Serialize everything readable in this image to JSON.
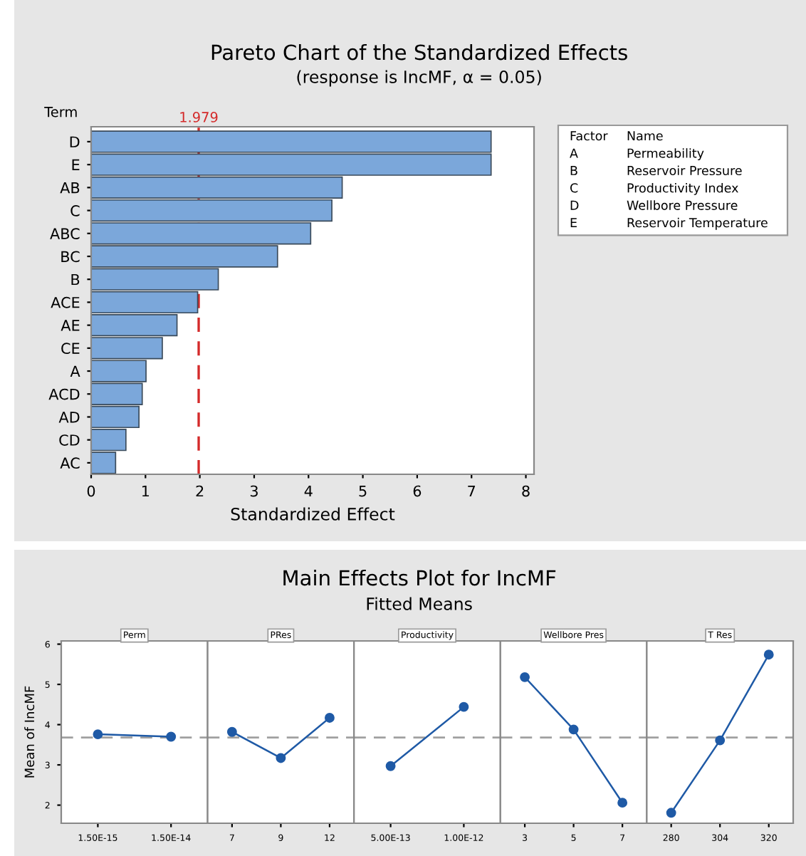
{
  "chart_data": [
    {
      "type": "bar",
      "orientation": "horizontal",
      "title": "Pareto Chart of the Standardized Effects",
      "subtitle": "(response is IncMF, α = 0.05)",
      "xlabel": "Standardized Effect",
      "ylabel": "Term",
      "categories": [
        "D",
        "E",
        "AB",
        "C",
        "ABC",
        "BC",
        "B",
        "ACE",
        "AE",
        "CE",
        "A",
        "ACD",
        "AD",
        "CD",
        "AC"
      ],
      "values": [
        7.36,
        7.36,
        4.62,
        4.43,
        4.04,
        3.43,
        2.34,
        1.96,
        1.58,
        1.31,
        1.01,
        0.94,
        0.88,
        0.64,
        0.45
      ],
      "color": "#7ba7da",
      "xlim": [
        0,
        8.15
      ],
      "xticks": [
        0,
        1,
        2,
        3,
        4,
        5,
        6,
        7,
        8
      ],
      "ref_lines": [
        {
          "axis": "x",
          "value": 1.979,
          "label": "1.979",
          "color": "#d42a2a",
          "line_style": "dashed"
        }
      ],
      "annotations": [
        "Factor",
        "Name",
        "A",
        "Permeability",
        "B",
        "Reservoir Pressure",
        "C",
        "Productivity Index",
        "D",
        "Wellbore Pressure",
        "E",
        "Reservoir Temperature"
      ],
      "grid": false,
      "legend": false
    },
    {
      "type": "line",
      "title": "Perm",
      "ylabel": "Mean of IncMF",
      "annotations": [
        "Main Effects Plot for IncMF",
        "Fitted Means"
      ],
      "categories": [
        "1.50E-15",
        "1.50E-14"
      ],
      "values": [
        3.76,
        3.7
      ],
      "color": "#1f5aa6",
      "marker": "circle",
      "line_style": "solid",
      "ylim": [
        1.55,
        6.08
      ],
      "yticks": [
        2,
        3,
        4,
        5,
        6
      ],
      "ref_lines": [
        {
          "axis": "y",
          "value": 3.68,
          "label": null,
          "color": "#a0a0a0",
          "line_style": "dashed"
        }
      ],
      "grid": false
    },
    {
      "type": "line",
      "title": "PRes",
      "tick_labels": "x",
      "categories": [
        "7",
        "9",
        "12"
      ],
      "values": [
        3.82,
        3.17,
        4.17
      ],
      "color": "#1f5aa6",
      "marker": "circle",
      "line_style": "solid",
      "ylim": [
        1.55,
        6.08
      ],
      "yticks": [
        2,
        3,
        4,
        5,
        6
      ],
      "ref_lines": [
        {
          "axis": "y",
          "value": 3.68,
          "label": null,
          "color": "#a0a0a0",
          "line_style": "dashed"
        }
      ],
      "grid": false
    },
    {
      "type": "line",
      "title": "Productivity",
      "tick_labels": "x",
      "categories": [
        "5.00E-13",
        "1.00E-12"
      ],
      "values": [
        2.97,
        4.44
      ],
      "color": "#1f5aa6",
      "marker": "circle",
      "line_style": "solid",
      "ylim": [
        1.55,
        6.08
      ],
      "yticks": [
        2,
        3,
        4,
        5,
        6
      ],
      "ref_lines": [
        {
          "axis": "y",
          "value": 3.68,
          "label": null,
          "color": "#a0a0a0",
          "line_style": "dashed"
        }
      ],
      "grid": false
    },
    {
      "type": "line",
      "title": "Wellbore Pres",
      "tick_labels": "x",
      "categories": [
        "3",
        "5",
        "7"
      ],
      "values": [
        5.18,
        3.88,
        2.06
      ],
      "color": "#1f5aa6",
      "marker": "circle",
      "line_style": "solid",
      "ylim": [
        1.55,
        6.08
      ],
      "yticks": [
        2,
        3,
        4,
        5,
        6
      ],
      "ref_lines": [
        {
          "axis": "y",
          "value": 3.68,
          "label": null,
          "color": "#a0a0a0",
          "line_style": "dashed"
        }
      ],
      "grid": false
    },
    {
      "type": "line",
      "title": "T Res",
      "tick_labels": "x",
      "categories": [
        "280",
        "304",
        "320"
      ],
      "values": [
        1.81,
        3.61,
        5.74
      ],
      "color": "#1f5aa6",
      "marker": "circle",
      "line_style": "solid",
      "ylim": [
        1.55,
        6.08
      ],
      "yticks": [
        2,
        3,
        4,
        5,
        6
      ],
      "ref_lines": [
        {
          "axis": "y",
          "value": 3.68,
          "label": null,
          "color": "#a0a0a0",
          "line_style": "dashed"
        }
      ],
      "grid": false
    }
  ]
}
